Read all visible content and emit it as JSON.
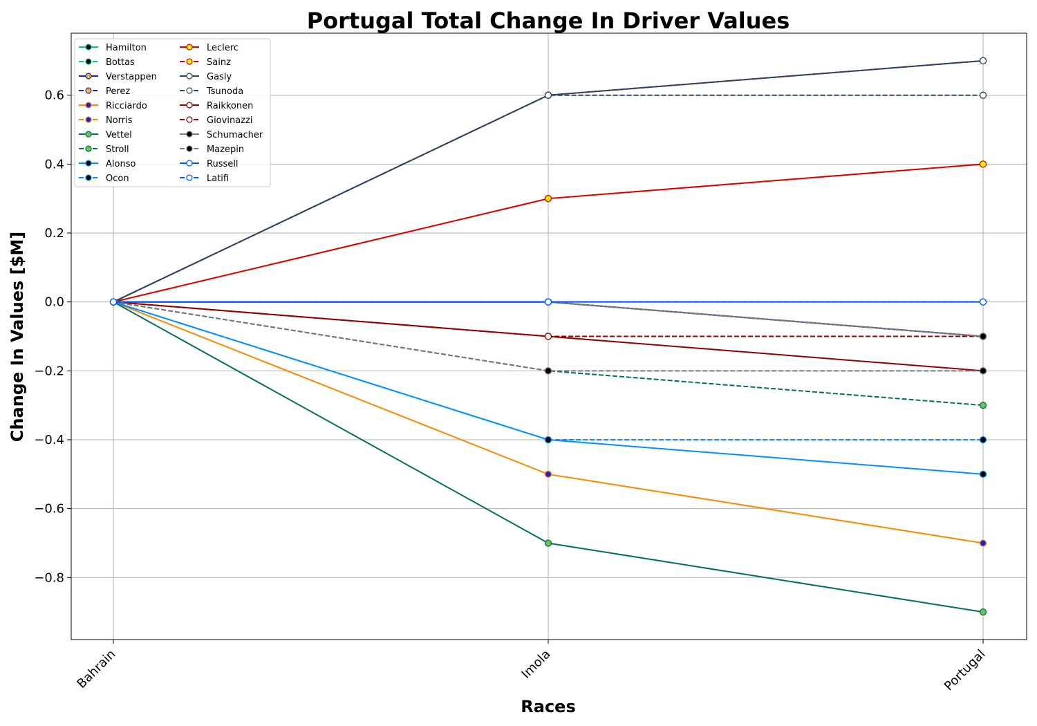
{
  "chart_data": {
    "type": "line",
    "title": "Portugal Total Change In Driver Values",
    "xlabel": "Races",
    "ylabel": "Change In Values [$M]",
    "categories": [
      "Bahrain",
      "Imola",
      "Portugal"
    ],
    "y_ticks": [
      -0.8,
      -0.6,
      -0.4,
      -0.2,
      0.0,
      0.2,
      0.4,
      0.6
    ],
    "y_tick_labels": [
      "−0.8",
      "−0.6",
      "−0.4",
      "−0.2",
      "0.0",
      "0.2",
      "0.4",
      "0.6"
    ],
    "ylim": [
      -0.98,
      0.78
    ],
    "grid": true,
    "legend_position": "upper-left",
    "legend_columns": 2,
    "series": [
      {
        "name": "Hamilton",
        "values": [
          0,
          0,
          -0.1
        ],
        "color": "#00bfa5",
        "dash": "solid",
        "marker_fill": "#000000"
      },
      {
        "name": "Bottas",
        "values": [
          0,
          0,
          -0.1
        ],
        "color": "#00bfa5",
        "dash": "dashed",
        "marker_fill": "#000000"
      },
      {
        "name": "Verstappen",
        "values": [
          0,
          0,
          -0.1
        ],
        "color": "#1e1ec8",
        "dash": "solid",
        "marker_fill": "#f0b830"
      },
      {
        "name": "Perez",
        "values": [
          0,
          0,
          -0.1
        ],
        "color": "#1e1ec8",
        "dash": "dashed",
        "marker_fill": "#f0b830"
      },
      {
        "name": "Ricciardo",
        "values": [
          0,
          -0.5,
          -0.7
        ],
        "color": "#ff8700",
        "dash": "solid",
        "marker_fill": "#2020d0"
      },
      {
        "name": "Norris",
        "values": [
          0,
          0.3,
          0.4
        ],
        "color": "#ff8700",
        "dash": "dashed",
        "marker_fill": "#2020d0"
      },
      {
        "name": "Vettel",
        "values": [
          0,
          -0.7,
          -0.9
        ],
        "color": "#006f62",
        "dash": "solid",
        "marker_fill": "#6cc24a"
      },
      {
        "name": "Stroll",
        "values": [
          0,
          -0.2,
          -0.3
        ],
        "color": "#006f62",
        "dash": "dashed",
        "marker_fill": "#6cc24a"
      },
      {
        "name": "Alonso",
        "values": [
          0,
          -0.4,
          -0.5
        ],
        "color": "#0090ff",
        "dash": "solid",
        "marker_fill": "#000000"
      },
      {
        "name": "Ocon",
        "values": [
          0,
          -0.4,
          -0.4
        ],
        "color": "#0090ff",
        "dash": "dashed",
        "marker_fill": "#000000"
      },
      {
        "name": "Leclerc",
        "values": [
          0,
          0.3,
          0.4
        ],
        "color": "#dc0000",
        "dash": "solid",
        "marker_fill": "#fff200"
      },
      {
        "name": "Sainz",
        "values": [
          0,
          0.6,
          0.7
        ],
        "color": "#dc0000",
        "dash": "dashed",
        "marker_fill": "#fff200"
      },
      {
        "name": "Gasly",
        "values": [
          0,
          0.6,
          0.7
        ],
        "color": "#2b4562",
        "dash": "solid",
        "marker_fill": "#ffffff"
      },
      {
        "name": "Tsunoda",
        "values": [
          0,
          0.6,
          0.6
        ],
        "color": "#2b4562",
        "dash": "dashed",
        "marker_fill": "#ffffff"
      },
      {
        "name": "Raikkonen",
        "values": [
          0,
          -0.1,
          -0.2
        ],
        "color": "#900000",
        "dash": "solid",
        "marker_fill": "#ffffff"
      },
      {
        "name": "Giovinazzi",
        "values": [
          0,
          -0.1,
          -0.1
        ],
        "color": "#900000",
        "dash": "dashed",
        "marker_fill": "#ffffff"
      },
      {
        "name": "Schumacher",
        "values": [
          0,
          0,
          -0.1
        ],
        "color": "#787878",
        "dash": "solid",
        "marker_fill": "#000000"
      },
      {
        "name": "Mazepin",
        "values": [
          0,
          -0.2,
          -0.2
        ],
        "color": "#787878",
        "dash": "dashed",
        "marker_fill": "#000000"
      },
      {
        "name": "Russell",
        "values": [
          0,
          0,
          0
        ],
        "color": "#005aff",
        "dash": "solid",
        "marker_fill": "#ffffff"
      },
      {
        "name": "Latifi",
        "values": [
          0,
          0,
          0
        ],
        "color": "#005aff",
        "dash": "dashed",
        "marker_fill": "#ffffff"
      }
    ]
  }
}
